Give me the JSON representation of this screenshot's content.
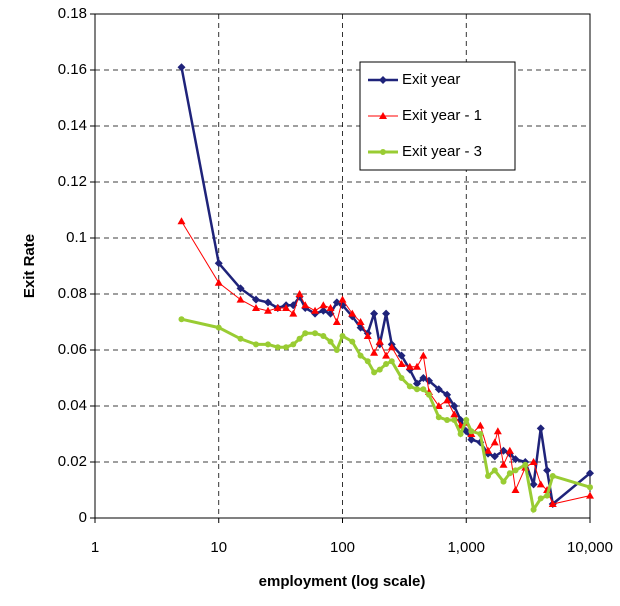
{
  "chart_data": {
    "type": "line",
    "x_label": "employment (log scale)",
    "y_label": "Exit Rate",
    "xlog": true,
    "grid": true,
    "legend": "upper-right",
    "xlim": [
      1,
      10000
    ],
    "xticks": [
      1,
      10,
      100,
      {
        "value": 1000,
        "label": "1,000"
      },
      {
        "value": 10000,
        "label": "10,000"
      }
    ],
    "ylim": [
      0,
      0.18
    ],
    "yticks": [
      0,
      0.02,
      0.04,
      0.06,
      0.08,
      0.1,
      0.12,
      0.14,
      0.16,
      0.18
    ],
    "series": [
      {
        "name": "Exit year",
        "color": "#1f237a",
        "marker": "diamond",
        "x": [
          5,
          10,
          15,
          20,
          25,
          30,
          35,
          40,
          45,
          50,
          60,
          70,
          80,
          90,
          100,
          120,
          140,
          160,
          180,
          200,
          225,
          250,
          300,
          350,
          400,
          450,
          500,
          600,
          700,
          800,
          900,
          1000,
          1100,
          1300,
          1500,
          1700,
          2000,
          2250,
          2500,
          3000,
          3500,
          4000,
          4500,
          5000,
          10000
        ],
        "values": [
          0.161,
          0.091,
          0.082,
          0.078,
          0.077,
          0.075,
          0.076,
          0.076,
          0.079,
          0.075,
          0.073,
          0.074,
          0.073,
          0.077,
          0.076,
          0.072,
          0.068,
          0.066,
          0.073,
          0.062,
          0.073,
          0.062,
          0.058,
          0.053,
          0.048,
          0.05,
          0.049,
          0.046,
          0.044,
          0.04,
          0.035,
          0.031,
          0.028,
          0.027,
          0.023,
          0.022,
          0.024,
          0.023,
          0.021,
          0.02,
          0.012,
          0.032,
          0.017,
          0.005,
          0.016
        ]
      },
      {
        "name": "Exit year - 1",
        "color": "#ff0000",
        "marker": "triangle",
        "x": [
          5,
          10,
          15,
          20,
          25,
          30,
          35,
          40,
          45,
          50,
          60,
          70,
          80,
          90,
          100,
          120,
          140,
          160,
          180,
          200,
          225,
          250,
          300,
          350,
          400,
          450,
          500,
          600,
          700,
          800,
          900,
          1000,
          1100,
          1300,
          1500,
          1700,
          1800,
          2000,
          2250,
          2500,
          3000,
          3500,
          4000,
          4500,
          5000,
          10000
        ],
        "values": [
          0.106,
          0.084,
          0.078,
          0.075,
          0.074,
          0.075,
          0.075,
          0.073,
          0.08,
          0.076,
          0.074,
          0.076,
          0.075,
          0.07,
          0.078,
          0.073,
          0.07,
          0.065,
          0.059,
          0.063,
          0.058,
          0.061,
          0.055,
          0.054,
          0.054,
          0.058,
          0.045,
          0.04,
          0.042,
          0.037,
          0.033,
          0.034,
          0.03,
          0.033,
          0.024,
          0.027,
          0.031,
          0.019,
          0.024,
          0.01,
          0.018,
          0.02,
          0.012,
          0.01,
          0.005,
          0.008
        ]
      },
      {
        "name": "Exit year - 3",
        "color": "#99cc33",
        "marker": "circle",
        "x": [
          5,
          10,
          15,
          20,
          25,
          30,
          35,
          40,
          45,
          50,
          60,
          70,
          80,
          90,
          100,
          120,
          140,
          160,
          180,
          200,
          225,
          250,
          300,
          350,
          400,
          450,
          500,
          600,
          700,
          800,
          900,
          1000,
          1100,
          1300,
          1500,
          1700,
          2000,
          2250,
          2500,
          3000,
          3500,
          4000,
          4500,
          5000,
          10000
        ],
        "values": [
          0.071,
          0.068,
          0.064,
          0.062,
          0.062,
          0.061,
          0.061,
          0.062,
          0.064,
          0.066,
          0.066,
          0.065,
          0.063,
          0.06,
          0.065,
          0.063,
          0.058,
          0.056,
          0.052,
          0.053,
          0.055,
          0.056,
          0.05,
          0.047,
          0.046,
          0.046,
          0.044,
          0.036,
          0.035,
          0.035,
          0.03,
          0.035,
          0.031,
          0.03,
          0.015,
          0.017,
          0.013,
          0.016,
          0.017,
          0.019,
          0.003,
          0.007,
          0.008,
          0.015,
          0.011
        ]
      }
    ]
  }
}
